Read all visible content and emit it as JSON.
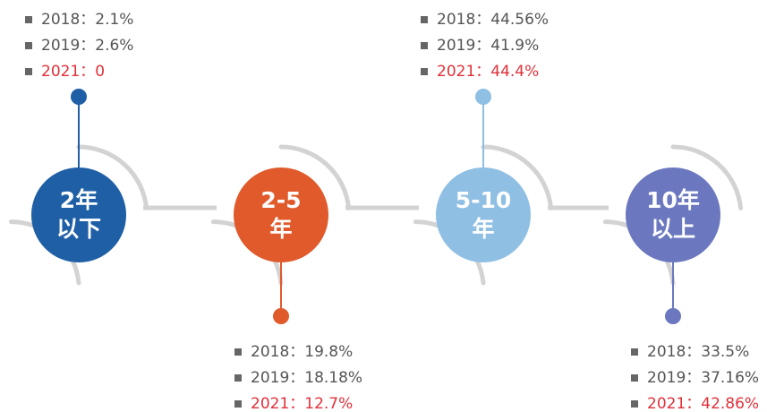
{
  "nodes": [
    {
      "label": [
        "2年",
        "以下"
      ],
      "stats": [
        "2018：2.1%",
        "2019：2.6%",
        "2021：0"
      ]
    },
    {
      "label": [
        "2-5",
        "年"
      ],
      "stats": [
        "2018：19.8%",
        "2019：18.18%",
        "2021：12.7%"
      ]
    },
    {
      "label": [
        "5-10",
        "年"
      ],
      "stats": [
        "2018：44.56%",
        "2019：41.9%",
        "2021：44.4%"
      ]
    },
    {
      "label": [
        "10年",
        "以上"
      ],
      "stats": [
        "2018：33.5%",
        "2019：37.16%",
        "2021：42.86%"
      ]
    }
  ]
}
